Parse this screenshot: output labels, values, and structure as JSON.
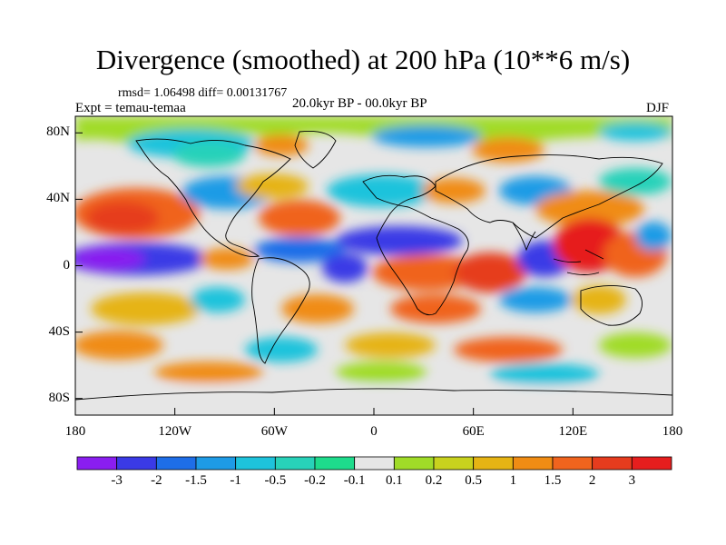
{
  "title": "Divergence (smoothed) at 200 hPa (10**6 m/s)",
  "stats": "rmsd= 1.06498 diff= 0.00131767",
  "experiment": "Expt = temau-temaa",
  "period": "20.0kyr BP - 00.0kyr BP",
  "season": "DJF",
  "axes": {
    "lat_labels": [
      "80N",
      "40N",
      "0",
      "40S",
      "80S"
    ],
    "lat_values": [
      80,
      40,
      0,
      -40,
      -80
    ],
    "lon_labels": [
      "180",
      "120W",
      "60W",
      "0",
      "60E",
      "120E",
      "180"
    ],
    "lon_values": [
      -180,
      -120,
      -60,
      0,
      60,
      120,
      180
    ]
  },
  "colorbar": {
    "labels": [
      "-3",
      "-2",
      "-1.5",
      "-1",
      "-0.5",
      "-0.2",
      "-0.1",
      "0.1",
      "0.2",
      "0.5",
      "1",
      "1.5",
      "2",
      "3"
    ],
    "colors": [
      "#8a1ef0",
      "#3a3ae6",
      "#1e6ee8",
      "#1e9be6",
      "#1ec3dc",
      "#28d2b9",
      "#1edc8c",
      "#e6e6e6",
      "#a0dc28",
      "#c8d21e",
      "#e6b414",
      "#f08c14",
      "#f0641e",
      "#e63c1e",
      "#e61e1e"
    ]
  },
  "palette": {
    "neutral": "#e6e6e6",
    "coast": "#000000"
  }
}
